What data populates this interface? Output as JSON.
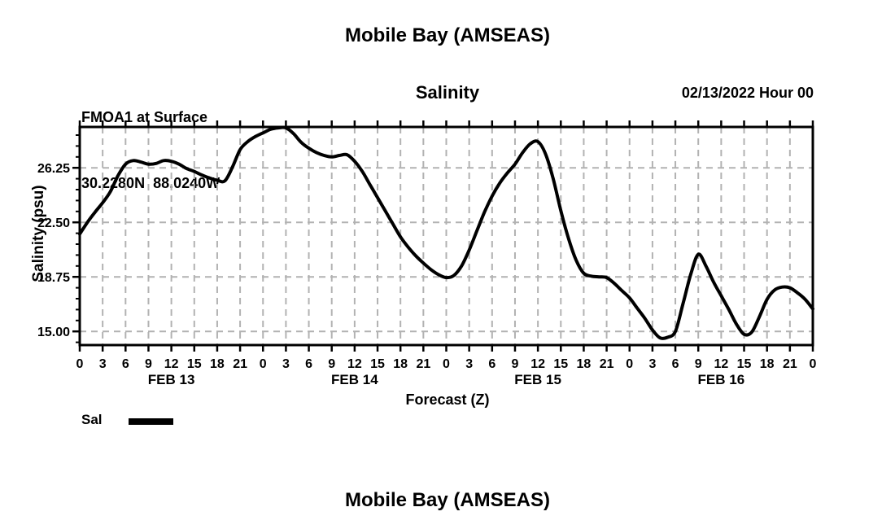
{
  "header": {
    "main_title": "Mobile Bay (AMSEAS)",
    "station_line1": "FMOA1 at Surface",
    "station_line2": "30.2280N  88.0240W",
    "plot_title": "Salinity",
    "run_label": "02/13/2022 Hour 00"
  },
  "chart_data": {
    "type": "line",
    "title": "Salinity",
    "xlabel": "Forecast (Z)",
    "ylabel": "Salinity (psu)",
    "xlim": [
      0,
      96
    ],
    "ylim": [
      14.06,
      29.06
    ],
    "yticks": [
      15.0,
      18.75,
      22.5,
      26.25
    ],
    "ytick_labels": [
      "15.00",
      "18.75",
      "22.50",
      "26.25"
    ],
    "y_minor_step": 0.75,
    "xtick_step_hours": 3,
    "xtick_cycle_labels": [
      "0",
      "3",
      "6",
      "9",
      "12",
      "15",
      "18",
      "21"
    ],
    "day_labels": [
      "FEB 13",
      "FEB 14",
      "FEB 15",
      "FEB 16"
    ],
    "day_center_hours": [
      12,
      36,
      60,
      84
    ],
    "grid": true,
    "legend": [
      {
        "label": "Sal",
        "color": "#000000"
      }
    ],
    "line_color": "#000000",
    "line_width": 4,
    "x_hours": [
      0,
      1,
      2,
      3,
      4,
      5,
      6,
      7,
      8,
      9,
      10,
      11,
      12,
      13,
      14,
      15,
      16,
      17,
      18,
      19,
      20,
      21,
      22,
      23,
      24,
      25,
      26,
      27,
      28,
      29,
      30,
      31,
      32,
      33,
      34,
      35,
      36,
      37,
      38,
      39,
      40,
      41,
      42,
      43,
      44,
      45,
      46,
      47,
      48,
      49,
      50,
      51,
      52,
      53,
      54,
      55,
      56,
      57,
      58,
      59,
      60,
      61,
      62,
      63,
      64,
      65,
      66,
      67,
      68,
      69,
      70,
      71,
      72,
      73,
      74,
      75,
      76,
      77,
      78,
      79,
      80,
      81,
      82,
      83,
      84,
      85,
      86,
      87,
      88,
      89,
      90,
      91,
      92,
      93,
      94,
      95,
      96
    ],
    "values": [
      21.7,
      22.5,
      23.2,
      23.85,
      24.6,
      25.7,
      26.5,
      26.75,
      26.65,
      26.5,
      26.55,
      26.75,
      26.7,
      26.5,
      26.2,
      26.0,
      25.75,
      25.55,
      25.4,
      25.35,
      26.3,
      27.5,
      28.05,
      28.4,
      28.65,
      28.9,
      29.0,
      29.0,
      28.6,
      28.0,
      27.6,
      27.3,
      27.1,
      27.0,
      27.1,
      27.15,
      26.7,
      26.0,
      25.1,
      24.2,
      23.3,
      22.4,
      21.5,
      20.8,
      20.2,
      19.7,
      19.25,
      18.9,
      18.7,
      18.85,
      19.5,
      20.6,
      21.9,
      23.2,
      24.3,
      25.2,
      25.9,
      26.5,
      27.3,
      27.9,
      28.05,
      27.2,
      25.5,
      23.3,
      21.4,
      19.9,
      19.0,
      18.8,
      18.75,
      18.7,
      18.3,
      17.8,
      17.3,
      16.6,
      15.9,
      15.1,
      14.55,
      14.6,
      15.0,
      16.9,
      18.9,
      20.3,
      19.5,
      18.4,
      17.45,
      16.5,
      15.5,
      14.8,
      14.95,
      16.0,
      17.2,
      17.85,
      18.05,
      18.0,
      17.65,
      17.2,
      16.55
    ]
  },
  "footer": {
    "next_title": "Mobile Bay (AMSEAS)"
  },
  "colors": {
    "line": "#000000",
    "grid": "#b2b2b2",
    "frame": "#000000",
    "text": "#000000",
    "background": "#ffffff"
  }
}
